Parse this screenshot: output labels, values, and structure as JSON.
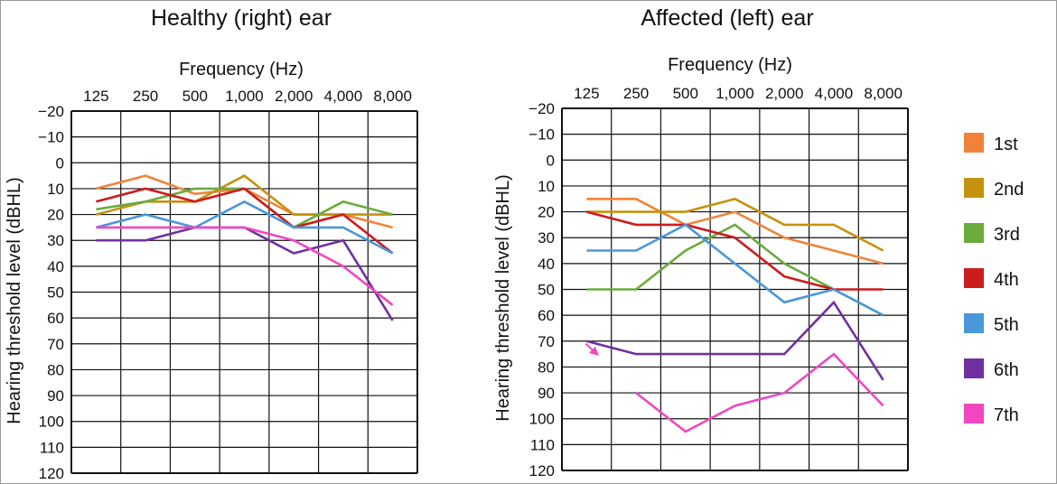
{
  "colors": {
    "1st": "#f0833a",
    "2nd": "#c4920e",
    "3rd": "#6aab3c",
    "4th": "#cc1c1c",
    "5th": "#4a97da",
    "6th": "#7030a0",
    "7th": "#f047c0"
  },
  "legend": [
    "1st",
    "2nd",
    "3rd",
    "4th",
    "5th",
    "6th",
    "7th"
  ],
  "chart_data": [
    {
      "type": "line",
      "title": "Healthy (right) ear",
      "xlabel": "Frequency  (Hz)",
      "ylabel": "Hearing threshold level (dBHL)",
      "categories": [
        "125",
        "250",
        "500",
        "1,000",
        "2,000",
        "4,000",
        "8,000"
      ],
      "yticks": [
        "−20",
        "−10",
        "0",
        "10",
        "20",
        "30",
        "40",
        "50",
        "60",
        "70",
        "80",
        "90",
        "100",
        "110",
        "120"
      ],
      "ylim": [
        -20,
        120
      ],
      "y_inverted": true,
      "grid": true,
      "series": [
        {
          "name": "1st",
          "values": [
            10,
            5,
            12,
            10,
            20,
            20,
            25
          ]
        },
        {
          "name": "2nd",
          "values": [
            20,
            15,
            15,
            5,
            20,
            20,
            20
          ]
        },
        {
          "name": "3rd",
          "values": [
            18,
            15,
            10,
            10,
            25,
            15,
            20
          ]
        },
        {
          "name": "4th",
          "values": [
            15,
            10,
            15,
            10,
            25,
            20,
            35
          ]
        },
        {
          "name": "5th",
          "values": [
            25,
            20,
            25,
            15,
            25,
            25,
            35
          ]
        },
        {
          "name": "6th",
          "values": [
            30,
            30,
            25,
            25,
            35,
            30,
            61
          ]
        },
        {
          "name": "7th",
          "values": [
            25,
            25,
            25,
            25,
            30,
            40,
            55
          ]
        }
      ]
    },
    {
      "type": "line",
      "title": "Affected (left) ear",
      "xlabel": "Frequency  (Hz)",
      "ylabel": "Hearing threshold level (dBHL)",
      "categories": [
        "125",
        "250",
        "500",
        "1,000",
        "2,000",
        "4,000",
        "8,000"
      ],
      "yticks": [
        "−20",
        "−10",
        "0",
        "10",
        "20",
        "30",
        "40",
        "50",
        "60",
        "70",
        "80",
        "90",
        "100",
        "110",
        "120"
      ],
      "ylim": [
        -20,
        120
      ],
      "y_inverted": true,
      "grid": true,
      "series": [
        {
          "name": "1st",
          "values": [
            15,
            15,
            25,
            20,
            30,
            35,
            40
          ]
        },
        {
          "name": "2nd",
          "values": [
            20,
            20,
            20,
            15,
            25,
            25,
            35
          ]
        },
        {
          "name": "3rd",
          "values": [
            50,
            50,
            35,
            25,
            40,
            50,
            60
          ]
        },
        {
          "name": "4th",
          "values": [
            20,
            25,
            25,
            30,
            45,
            50,
            50
          ]
        },
        {
          "name": "5th",
          "values": [
            35,
            35,
            25,
            40,
            55,
            50,
            60
          ]
        },
        {
          "name": "6th",
          "values": [
            70,
            75,
            75,
            75,
            75,
            55,
            85
          ]
        },
        {
          "name": "7th",
          "values": [
            null,
            90,
            105,
            95,
            90,
            75,
            95
          ]
        }
      ],
      "annotation": "arrow from 7th-visit marker near 125 Hz, 70 dBHL pointing down-right"
    }
  ]
}
